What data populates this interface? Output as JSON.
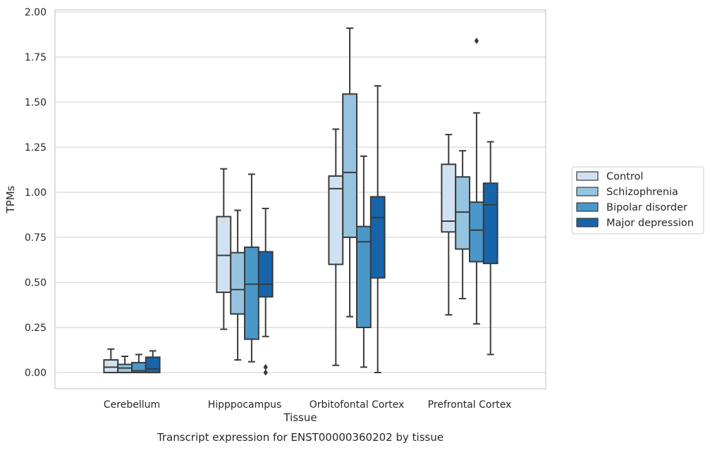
{
  "chart_data": {
    "type": "box",
    "title": "Transcript expression for ENST00000360202 by tissue",
    "xlabel": "Tissue",
    "ylabel": "TPMs",
    "ylim": [
      -0.09,
      2.0
    ],
    "yticks": [
      "0.00",
      "0.25",
      "0.50",
      "0.75",
      "1.00",
      "1.25",
      "1.50",
      "1.75",
      "2.00"
    ],
    "grid": true,
    "legend_position": "right",
    "categories": [
      "Cerebellum",
      "Hipppocampus",
      "Orbitofontal Cortex",
      "Prefrontal Cortex"
    ],
    "series": [
      {
        "name": "Control",
        "color": "#d0e1f2",
        "boxes": [
          {
            "min": 0.0,
            "q1": 0.0,
            "median": 0.03,
            "q3": 0.07,
            "max": 0.13,
            "outliers": []
          },
          {
            "min": 0.24,
            "q1": 0.445,
            "median": 0.65,
            "q3": 0.865,
            "max": 1.13,
            "outliers": []
          },
          {
            "min": 0.04,
            "q1": 0.6,
            "median": 1.02,
            "q3": 1.09,
            "max": 1.35,
            "outliers": []
          },
          {
            "min": 0.32,
            "q1": 0.78,
            "median": 0.84,
            "q3": 1.155,
            "max": 1.32,
            "outliers": []
          }
        ]
      },
      {
        "name": "Schizophrenia",
        "color": "#94c4df",
        "boxes": [
          {
            "min": 0.0,
            "q1": 0.0,
            "median": 0.025,
            "q3": 0.045,
            "max": 0.09,
            "outliers": []
          },
          {
            "min": 0.07,
            "q1": 0.325,
            "median": 0.46,
            "q3": 0.665,
            "max": 0.9,
            "outliers": []
          },
          {
            "min": 0.31,
            "q1": 0.75,
            "median": 1.11,
            "q3": 1.545,
            "max": 1.91,
            "outliers": []
          },
          {
            "min": 0.41,
            "q1": 0.685,
            "median": 0.89,
            "q3": 1.085,
            "max": 1.23,
            "outliers": []
          }
        ]
      },
      {
        "name": "Bipolar disorder",
        "color": "#4a98c9",
        "boxes": [
          {
            "min": 0.0,
            "q1": 0.0,
            "median": 0.01,
            "q3": 0.055,
            "max": 0.1,
            "outliers": []
          },
          {
            "min": 0.06,
            "q1": 0.185,
            "median": 0.49,
            "q3": 0.695,
            "max": 1.1,
            "outliers": []
          },
          {
            "min": 0.03,
            "q1": 0.25,
            "median": 0.725,
            "q3": 0.81,
            "max": 1.2,
            "outliers": []
          },
          {
            "min": 0.27,
            "q1": 0.615,
            "median": 0.79,
            "q3": 0.945,
            "max": 1.44,
            "outliers": [
              1.84
            ]
          }
        ]
      },
      {
        "name": "Major depression",
        "color": "#1764ab",
        "boxes": [
          {
            "min": 0.0,
            "q1": 0.0,
            "median": 0.02,
            "q3": 0.085,
            "max": 0.12,
            "outliers": []
          },
          {
            "min": 0.2,
            "q1": 0.42,
            "median": 0.49,
            "q3": 0.67,
            "max": 0.91,
            "outliers": [
              0.0,
              0.03
            ]
          },
          {
            "min": 0.0,
            "q1": 0.525,
            "median": 0.86,
            "q3": 0.975,
            "max": 1.59,
            "outliers": []
          },
          {
            "min": 0.1,
            "q1": 0.605,
            "median": 0.93,
            "q3": 1.05,
            "max": 1.28,
            "outliers": []
          }
        ]
      }
    ]
  }
}
